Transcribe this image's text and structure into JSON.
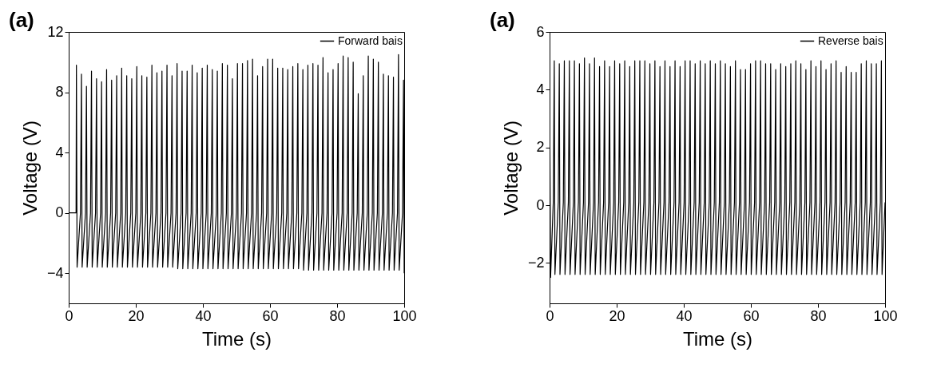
{
  "chart_data": [
    {
      "type": "line",
      "title": "(a)",
      "xlabel": "Time (s)",
      "ylabel": "Voltage (V)",
      "xlim": [
        0,
        100
      ],
      "xticks": [
        0,
        20,
        40,
        60,
        80,
        100
      ],
      "ylim": [
        -6,
        12
      ],
      "yticks": [
        -4,
        0,
        4,
        8,
        12
      ],
      "grid": false,
      "legend": "top right",
      "marker": "none",
      "line_style": "solid",
      "series": [
        {
          "name": "Forward bais",
          "color": "#000000",
          "x": [
            0,
            2.2,
            2.3,
            2.5,
            3.5,
            3.8,
            4,
            5,
            5.3,
            5.5,
            6.5,
            6.8,
            7,
            8,
            8.3,
            8.5,
            9.5,
            9.8,
            10,
            11,
            11.3,
            11.5,
            12.5,
            12.8,
            13,
            14,
            14.3,
            14.5,
            15.5,
            15.8,
            16,
            17,
            17.3,
            17.5,
            18.5,
            18.8,
            19,
            20,
            20.3,
            20.5,
            21.5,
            21.8,
            22,
            23,
            23.3,
            23.5,
            24.5,
            24.8,
            25,
            26,
            26.3,
            26.5,
            27.5,
            27.8,
            28,
            29,
            29.3,
            29.5,
            30.5,
            30.8,
            31,
            32,
            32.3,
            32.5,
            33.5,
            33.8,
            34,
            35,
            35.3,
            35.5,
            36.5,
            36.8,
            37,
            38,
            38.3,
            38.5,
            39.5,
            39.8,
            40,
            41,
            41.3,
            41.5,
            42.5,
            42.8,
            43,
            44,
            44.3,
            44.5,
            45.5,
            45.8,
            46,
            47,
            47.3,
            47.5,
            48.5,
            48.8,
            49,
            50,
            50.3,
            50.5,
            51.5,
            51.8,
            52,
            53,
            53.3,
            53.5,
            54.5,
            54.8,
            55,
            56,
            56.3,
            56.5,
            57.5,
            57.8,
            58,
            59,
            59.3,
            59.5,
            60.5,
            60.8,
            61,
            62,
            62.3,
            62.5,
            63.5,
            63.8,
            64,
            65,
            65.3,
            65.5,
            66.5,
            66.8,
            67,
            68,
            68.3,
            68.5,
            69.5,
            69.8,
            70,
            71,
            71.3,
            71.5,
            72.5,
            72.8,
            73,
            74,
            74.3,
            74.5,
            75.5,
            75.8,
            76,
            77,
            77.3,
            77.5,
            78.5,
            78.8,
            79,
            80,
            80.3,
            80.5,
            81.5,
            81.8,
            82,
            83,
            83.3,
            83.5,
            84.5,
            84.8,
            85,
            86,
            86.3,
            86.5,
            87.5,
            87.8,
            88,
            89,
            89.3,
            89.5,
            90.5,
            90.8,
            91,
            92,
            92.3,
            92.5,
            93.5,
            93.8,
            94,
            95,
            95.3,
            95.5,
            96.5,
            96.8,
            97,
            98,
            98.3,
            98.5,
            99.5,
            99.8,
            100
          ],
          "values": [
            0,
            0,
            9.8,
            -3.6,
            0,
            9.2,
            -3.6,
            0,
            8.4,
            -3.6,
            0,
            9.4,
            -3.6,
            0,
            8.9,
            -3.6,
            0,
            8.7,
            -3.6,
            0,
            9.5,
            -3.6,
            0,
            8.8,
            -3.6,
            0,
            9.1,
            -3.6,
            0,
            9.6,
            -3.6,
            0,
            9.1,
            -3.6,
            0,
            8.9,
            -3.6,
            0,
            9.7,
            -3.6,
            0,
            9.1,
            -3.6,
            0,
            9.0,
            -3.6,
            0,
            9.8,
            -3.6,
            0,
            9.3,
            -3.6,
            0,
            9.4,
            -3.6,
            0,
            9.8,
            -3.6,
            0,
            9.1,
            -3.6,
            0,
            9.9,
            -3.7,
            0,
            9.4,
            -3.7,
            0,
            9.4,
            -3.7,
            0,
            9.8,
            -3.7,
            0,
            9.3,
            -3.7,
            0,
            9.6,
            -3.7,
            0,
            9.8,
            -3.7,
            0,
            9.5,
            -3.7,
            0,
            9.4,
            -3.7,
            0,
            9.9,
            -3.7,
            0,
            9.8,
            -3.7,
            0,
            8.9,
            -3.7,
            0,
            9.9,
            -3.7,
            0,
            9.9,
            -3.7,
            0,
            10.1,
            -3.7,
            0,
            10.2,
            -3.7,
            0,
            9.1,
            -3.7,
            0,
            9.7,
            -3.7,
            0,
            10.2,
            -3.7,
            0,
            10.2,
            -3.7,
            0,
            9.6,
            -3.7,
            0,
            9.6,
            -3.7,
            0,
            9.5,
            -3.7,
            0,
            9.7,
            -3.7,
            0,
            9.9,
            -3.7,
            0,
            9.5,
            -3.8,
            0,
            9.8,
            -3.8,
            0,
            9.9,
            -3.8,
            0,
            9.8,
            -3.8,
            0,
            10.3,
            -3.8,
            0,
            9.3,
            -3.8,
            0,
            9.5,
            -3.8,
            0,
            9.9,
            -3.8,
            0,
            10.4,
            -3.8,
            0,
            10.3,
            -3.8,
            0,
            10.0,
            -3.8,
            0,
            7.9,
            -3.8,
            0,
            9.1,
            -3.8,
            0,
            10.4,
            -3.8,
            0,
            10.2,
            -3.8,
            0,
            10.0,
            -3.8,
            0,
            9.2,
            -3.8,
            0,
            9.1,
            -3.8,
            0,
            9.0,
            -3.8,
            0,
            10.5,
            -3.8,
            0,
            8.8,
            -4.0
          ]
        }
      ]
    },
    {
      "type": "line",
      "title": "(a)",
      "xlabel": "Time (s)",
      "ylabel": "Voltage (V)",
      "xlim": [
        0,
        100
      ],
      "xticks": [
        0,
        20,
        40,
        60,
        80,
        100
      ],
      "ylim": [
        -3.4,
        6
      ],
      "yticks": [
        -2,
        0,
        2,
        4,
        6
      ],
      "grid": false,
      "legend": "top right",
      "marker": "none",
      "line_style": "solid",
      "series": [
        {
          "name": "Reverse bais",
          "color": "#000000",
          "x": [
            0,
            0.3,
            1.1,
            1.4,
            1.6,
            2.6,
            2.9,
            3.1,
            4.1,
            4.4,
            4.6,
            5.6,
            5.9,
            6.1,
            7.1,
            7.4,
            7.6,
            8.6,
            8.9,
            9.1,
            10.1,
            10.4,
            10.6,
            11.6,
            11.9,
            12.1,
            13.1,
            13.4,
            13.6,
            14.6,
            14.9,
            15.1,
            16.1,
            16.4,
            16.6,
            17.6,
            17.9,
            18.1,
            19.1,
            19.4,
            19.6,
            20.6,
            20.9,
            21.1,
            22.1,
            22.4,
            22.6,
            23.6,
            23.9,
            24.1,
            25.1,
            25.4,
            25.6,
            26.6,
            26.9,
            27.1,
            28.1,
            28.4,
            28.6,
            29.6,
            29.9,
            30.1,
            31.1,
            31.4,
            31.6,
            32.6,
            32.9,
            33.1,
            34.1,
            34.4,
            34.6,
            35.6,
            35.9,
            36.1,
            37.1,
            37.4,
            37.6,
            38.6,
            38.9,
            39.1,
            40.1,
            40.4,
            40.6,
            41.6,
            41.9,
            42.1,
            43.1,
            43.4,
            43.6,
            44.6,
            44.9,
            45.1,
            46.1,
            46.4,
            46.6,
            47.6,
            47.9,
            48.1,
            49.1,
            49.4,
            49.6,
            50.6,
            50.9,
            51.1,
            52.1,
            52.4,
            52.6,
            53.6,
            53.9,
            54.1,
            55.1,
            55.4,
            55.6,
            56.6,
            56.9,
            57.1,
            58.1,
            58.4,
            58.6,
            59.6,
            59.9,
            60.1,
            61.1,
            61.4,
            61.6,
            62.6,
            62.9,
            63.1,
            64.1,
            64.4,
            64.6,
            65.6,
            65.9,
            66.1,
            67.1,
            67.4,
            67.6,
            68.6,
            68.9,
            69.1,
            70.1,
            70.4,
            70.6,
            71.6,
            71.9,
            72.1,
            73.1,
            73.4,
            73.6,
            74.6,
            74.9,
            75.1,
            76.1,
            76.4,
            76.6,
            77.6,
            77.9,
            78.1,
            79.1,
            79.4,
            79.6,
            80.6,
            80.9,
            81.1,
            82.1,
            82.4,
            82.6,
            83.6,
            83.9,
            84.1,
            85.1,
            85.4,
            85.6,
            86.6,
            86.9,
            87.1,
            88.1,
            88.4,
            88.6,
            89.6,
            89.9,
            90.1,
            91.1,
            91.4,
            91.6,
            92.6,
            92.9,
            93.1,
            94.1,
            94.4,
            94.6,
            95.6,
            95.9,
            96.1,
            97.1,
            97.4,
            97.6,
            98.6,
            98.9,
            99.1,
            100
          ],
          "values": [
            4.3,
            -2.5,
            0.1,
            5.0,
            -2.4,
            0.1,
            4.9,
            -2.4,
            0.1,
            5.0,
            -2.4,
            0.1,
            5.0,
            -2.4,
            0.1,
            5.0,
            -2.4,
            0.1,
            4.9,
            -2.4,
            0.1,
            5.1,
            -2.4,
            0.1,
            4.9,
            -2.4,
            0.1,
            5.1,
            -2.4,
            0.1,
            4.8,
            -2.4,
            0.1,
            5.0,
            -2.4,
            0.1,
            4.8,
            -2.4,
            0.1,
            5.0,
            -2.4,
            0.1,
            4.9,
            -2.4,
            0.1,
            5.0,
            -2.4,
            0.1,
            4.8,
            -2.4,
            0.1,
            5.0,
            -2.4,
            0.1,
            5.0,
            -2.4,
            0.1,
            5.0,
            -2.4,
            0.1,
            4.9,
            -2.4,
            0.1,
            5.0,
            -2.4,
            0.1,
            4.8,
            -2.4,
            0.1,
            5.0,
            -2.4,
            0.1,
            4.8,
            -2.4,
            0.1,
            5.0,
            -2.4,
            0.1,
            4.8,
            -2.4,
            0.1,
            5.0,
            -2.4,
            0.1,
            5.0,
            -2.4,
            0.1,
            4.9,
            -2.4,
            0.1,
            5.0,
            -2.4,
            0.1,
            4.9,
            -2.4,
            0.1,
            5.0,
            -2.4,
            0.1,
            4.9,
            -2.4,
            0.1,
            5.0,
            -2.4,
            0.1,
            4.9,
            -2.4,
            0.1,
            4.8,
            -2.4,
            0.1,
            5.0,
            -2.4,
            0.1,
            4.7,
            -2.4,
            0.1,
            4.7,
            -2.4,
            0.1,
            4.9,
            -2.4,
            0.1,
            5.0,
            -2.4,
            0.1,
            5.0,
            -2.4,
            0.1,
            4.9,
            -2.4,
            0.1,
            4.9,
            -2.4,
            0.1,
            4.7,
            -2.4,
            0.1,
            4.9,
            -2.4,
            0.1,
            4.8,
            -2.4,
            0.1,
            4.9,
            -2.4,
            0.1,
            5.0,
            -2.4,
            0.1,
            4.9,
            -2.4,
            0.1,
            4.7,
            -2.4,
            0.1,
            5.0,
            -2.4,
            0.1,
            4.8,
            -2.4,
            0.1,
            5.0,
            -2.4,
            0.1,
            4.7,
            -2.4,
            0.1,
            4.9,
            -2.4,
            0.1,
            5.0,
            -2.4,
            0.1,
            4.6,
            -2.4,
            0.1,
            4.8,
            -2.4,
            0.1,
            4.6,
            -2.4,
            0.1,
            4.6,
            -2.4,
            0.1,
            4.9,
            -2.4,
            0.1,
            5.0,
            -2.4,
            0.1,
            4.9,
            -2.4,
            0.1,
            4.9,
            -2.4,
            0.1,
            5.0,
            -2.4,
            0.1
          ]
        }
      ]
    }
  ]
}
